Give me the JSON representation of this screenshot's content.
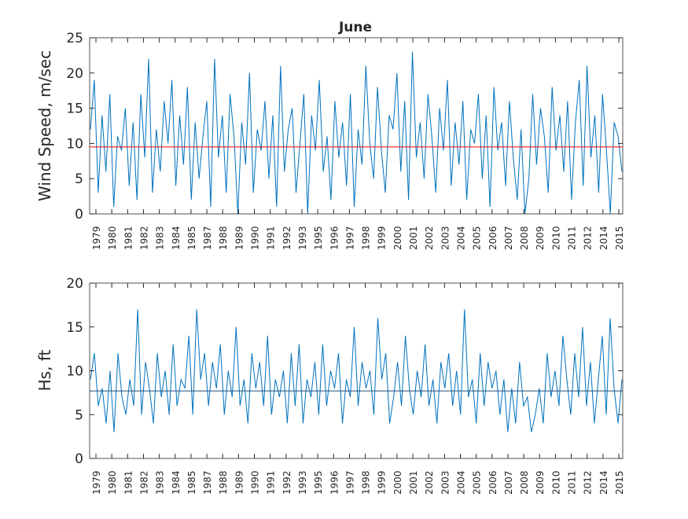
{
  "chart_data": [
    {
      "type": "line",
      "title": "June",
      "ylabel": "Wind Speed, m/sec",
      "xlabel": "",
      "ylim": [
        0,
        25
      ],
      "yticks": [
        0,
        5,
        10,
        15,
        20,
        25
      ],
      "xtick_labels": [
        "1979",
        "1980",
        "1981",
        "1982",
        "1983",
        "1984",
        "1985",
        "1987",
        "1988",
        "1989",
        "1990",
        "1991",
        "1992",
        "1993",
        "1995",
        "1996",
        "1997",
        "1998",
        "1999",
        "2000",
        "2001",
        "2002",
        "2003",
        "2004",
        "2005",
        "2006",
        "2007",
        "2008",
        "2009",
        "2010",
        "2011",
        "2012",
        "2014",
        "2015"
      ],
      "mean_line": 9.5,
      "colors": {
        "series": "#0072BD",
        "mean": "#FF0000"
      },
      "series": [
        {
          "name": "Wind Speed",
          "values": [
            12,
            19,
            3,
            14,
            6,
            17,
            1,
            11,
            9,
            15,
            4,
            13,
            2,
            17,
            8,
            22,
            3,
            12,
            6,
            16,
            10,
            19,
            4,
            14,
            7,
            18,
            2,
            13,
            5,
            11,
            16,
            1,
            22,
            8,
            14,
            3,
            17,
            11,
            0,
            13,
            7,
            20,
            3,
            12,
            9,
            16,
            5,
            14,
            1,
            21,
            6,
            12,
            15,
            3,
            10,
            17,
            0,
            14,
            9,
            19,
            6,
            11,
            2,
            16,
            8,
            13,
            4,
            17,
            1,
            12,
            7,
            21,
            10,
            5,
            18,
            9,
            3,
            14,
            12,
            20,
            6,
            16,
            2,
            23,
            8,
            13,
            5,
            17,
            11,
            3,
            15,
            9,
            19,
            4,
            13,
            7,
            16,
            2,
            12,
            10,
            17,
            5,
            14,
            1,
            18,
            9,
            13,
            4,
            16,
            8,
            2,
            12,
            0,
            5,
            17,
            7,
            15,
            11,
            3,
            18,
            9,
            14,
            6,
            16,
            2,
            13,
            19,
            4,
            21,
            8,
            14,
            3,
            17,
            9,
            0,
            13,
            11,
            6
          ]
        }
      ]
    },
    {
      "type": "line",
      "title": "",
      "ylabel": "Hs, ft",
      "xlabel": "",
      "ylim": [
        0,
        20
      ],
      "yticks": [
        0,
        5,
        10,
        15,
        20
      ],
      "xtick_labels": [
        "1979",
        "1980",
        "1981",
        "1982",
        "1983",
        "1984",
        "1985",
        "1987",
        "1988",
        "1989",
        "1990",
        "1991",
        "1992",
        "1993",
        "1995",
        "1996",
        "1997",
        "1998",
        "1999",
        "2000",
        "2001",
        "2002",
        "2003",
        "2004",
        "2005",
        "2006",
        "2007",
        "2008",
        "2009",
        "2010",
        "2011",
        "2012",
        "2014",
        "2015"
      ],
      "mean_line": 7.7,
      "colors": {
        "series": "#0072BD",
        "mean": "#1F4E79"
      },
      "series": [
        {
          "name": "Hs",
          "values": [
            9,
            12,
            6,
            8,
            4,
            10,
            3,
            12,
            7,
            5,
            9,
            6,
            17,
            5,
            11,
            8,
            4,
            12,
            7,
            10,
            5,
            13,
            6,
            9,
            8,
            14,
            5,
            17,
            9,
            12,
            6,
            11,
            8,
            13,
            5,
            10,
            7,
            15,
            6,
            9,
            4,
            12,
            8,
            11,
            6,
            14,
            5,
            9,
            7,
            10,
            4,
            12,
            6,
            13,
            4,
            9,
            7,
            11,
            5,
            13,
            6,
            10,
            8,
            12,
            4,
            9,
            7,
            15,
            6,
            11,
            8,
            10,
            5,
            16,
            9,
            12,
            4,
            7,
            11,
            6,
            14,
            8,
            5,
            10,
            7,
            13,
            6,
            9,
            4,
            11,
            8,
            12,
            6,
            10,
            5,
            17,
            7,
            9,
            4,
            12,
            6,
            11,
            8,
            10,
            5,
            9,
            3,
            8,
            4,
            11,
            6,
            7,
            3,
            5,
            8,
            4,
            12,
            7,
            10,
            6,
            14,
            9,
            5,
            12,
            7,
            15,
            6,
            11,
            4,
            9,
            14,
            5,
            16,
            8,
            4,
            9
          ]
        }
      ]
    }
  ]
}
